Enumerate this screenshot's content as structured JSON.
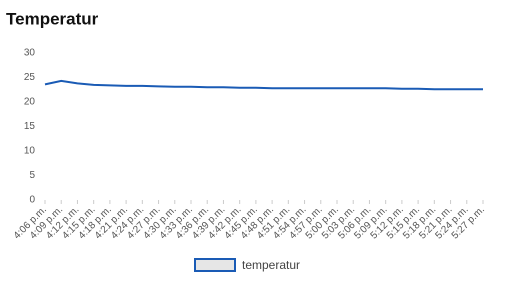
{
  "chart_data": {
    "type": "line",
    "title": "Temperatur",
    "categories": [
      "4:06 p.m.",
      "4:09 p.m.",
      "4:12 p.m.",
      "4:15 p.m.",
      "4:18 p.m.",
      "4:21 p.m.",
      "4:24 p.m.",
      "4:27 p.m.",
      "4:30 p.m.",
      "4:33 p.m.",
      "4:36 p.m.",
      "4:39 p.m.",
      "4:42 p.m.",
      "4:45 p.m.",
      "4:48 p.m.",
      "4:51 p.m.",
      "4:54 p.m.",
      "4:57 p.m.",
      "5:00 p.m.",
      "5:03 p.m.",
      "5:06 p.m.",
      "5:09 p.m.",
      "5:12 p.m.",
      "5:15 p.m.",
      "5:18 p.m.",
      "5:21 p.m.",
      "5:24 p.m.",
      "5:27 p.m."
    ],
    "series": [
      {
        "name": "temperatur",
        "color": "#1a5bb5",
        "values": [
          23.6,
          24.3,
          23.8,
          23.5,
          23.4,
          23.3,
          23.3,
          23.2,
          23.1,
          23.1,
          23.0,
          23.0,
          22.9,
          22.9,
          22.8,
          22.8,
          22.8,
          22.8,
          22.8,
          22.8,
          22.8,
          22.8,
          22.7,
          22.7,
          22.6,
          22.6,
          22.6,
          22.6
        ]
      }
    ],
    "ylim": [
      0,
      30
    ],
    "yticks": [
      0,
      5,
      10,
      15,
      20,
      25,
      30
    ],
    "grid": false,
    "legend": "bottom"
  }
}
